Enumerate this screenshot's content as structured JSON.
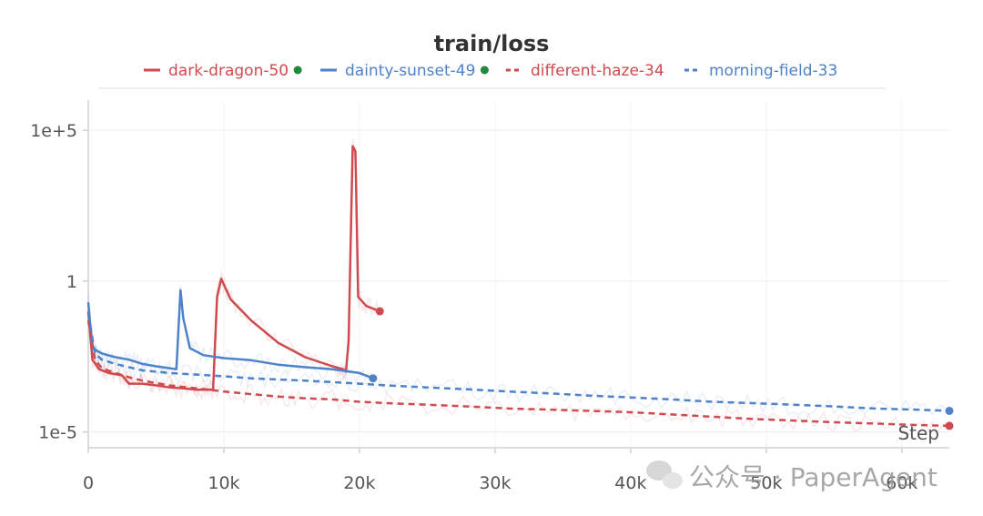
{
  "watermark": {
    "text": "公众号 · PaperAgent"
  },
  "chart_data": {
    "type": "line",
    "title": "train/loss",
    "xlabel": "Step",
    "ylabel": "",
    "yscale": "log",
    "xlim": [
      0,
      63500
    ],
    "ylim": [
      3e-06,
      1000000
    ],
    "grid": true,
    "legend": "top",
    "x_ticks": [
      0,
      10000,
      20000,
      30000,
      40000,
      50000,
      60000
    ],
    "x_tick_labels": [
      "0",
      "10k",
      "20k",
      "30k",
      "40k",
      "50k",
      "60k"
    ],
    "y_ticks": [
      1e-05,
      1,
      100000
    ],
    "y_tick_labels": [
      "1e-5",
      "1",
      "1e+5"
    ],
    "series": [
      {
        "name": "dark-dragon-50",
        "color": "#cf4a4f",
        "dash": "solid",
        "running": true,
        "x": [
          0,
          300,
          800,
          1500,
          2500,
          3000,
          4000,
          5000,
          6000,
          7000,
          8000,
          9000,
          9200,
          9500,
          9800,
          10500,
          12000,
          14000,
          16000,
          18000,
          18800,
          19000,
          19200,
          19500,
          19700,
          19900,
          20500,
          21500
        ],
        "y": [
          0.1,
          0.0025,
          0.0012,
          0.0009,
          0.00075,
          0.0004,
          0.0004,
          0.00035,
          0.0003,
          0.00028,
          0.00025,
          0.00025,
          0.00025,
          0.3,
          1.2,
          0.25,
          0.05,
          0.009,
          0.003,
          0.0015,
          0.0012,
          0.001,
          0.01,
          30000,
          20000,
          0.3,
          0.15,
          0.1
        ]
      },
      {
        "name": "dainty-sunset-49",
        "color": "#4f82c8",
        "dash": "solid",
        "running": true,
        "x": [
          0,
          300,
          1000,
          2000,
          3000,
          4000,
          5000,
          6000,
          6500,
          6800,
          7000,
          7500,
          8500,
          10000,
          12000,
          14000,
          16000,
          18000,
          20000,
          21000
        ],
        "y": [
          0.2,
          0.006,
          0.004,
          0.003,
          0.0025,
          0.0018,
          0.0015,
          0.0013,
          0.0012,
          0.5,
          0.06,
          0.006,
          0.0035,
          0.0028,
          0.0024,
          0.0017,
          0.0014,
          0.0012,
          0.0009,
          0.0006
        ]
      },
      {
        "name": "different-haze-34",
        "color": "#cf4a4f",
        "dash": "dashed",
        "running": false,
        "x": [
          0,
          500,
          1000,
          2000,
          3000,
          4000,
          6000,
          8000,
          10000,
          12000,
          14000,
          16000,
          18000,
          20000,
          22000,
          25000,
          28000,
          31000,
          34000,
          37000,
          40000,
          43000,
          46000,
          49000,
          52000,
          55000,
          58000,
          61000,
          63500
        ],
        "y": [
          0.05,
          0.0025,
          0.0013,
          0.0009,
          0.00065,
          0.0005,
          0.00035,
          0.00028,
          0.00022,
          0.00018,
          0.00015,
          0.00013,
          0.00012,
          0.0001,
          9e-05,
          8e-05,
          7e-05,
          6e-05,
          5.5e-05,
          5e-05,
          4.5e-05,
          3.8e-05,
          3.2e-05,
          2.7e-05,
          2.4e-05,
          2.1e-05,
          1.9e-05,
          1.7e-05,
          1.6e-05
        ]
      },
      {
        "name": "morning-field-33",
        "color": "#4f82c8",
        "dash": "dashed",
        "running": false,
        "x": [
          0,
          500,
          1000,
          2000,
          3000,
          4000,
          6000,
          8000,
          10000,
          12000,
          14000,
          16000,
          18000,
          20000,
          22000,
          25000,
          28000,
          31000,
          34000,
          37000,
          40000,
          43000,
          46000,
          49000,
          52000,
          55000,
          58000,
          61000,
          63500
        ],
        "y": [
          0.08,
          0.004,
          0.0025,
          0.0018,
          0.0014,
          0.0011,
          0.0009,
          0.0008,
          0.0007,
          0.0006,
          0.00055,
          0.0005,
          0.00045,
          0.0004,
          0.00035,
          0.0003,
          0.00026,
          0.00022,
          0.00019,
          0.00016,
          0.00014,
          0.00012,
          0.0001,
          9e-05,
          8e-05,
          7e-05,
          6e-05,
          5.5e-05,
          5e-05
        ]
      }
    ]
  }
}
